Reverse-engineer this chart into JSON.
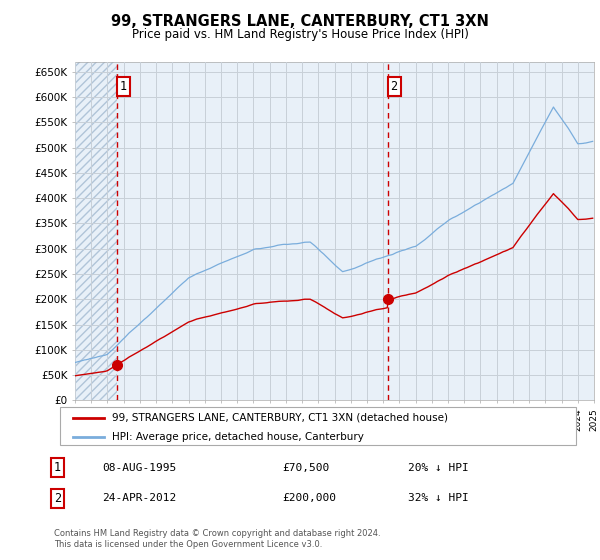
{
  "title": "99, STRANGERS LANE, CANTERBURY, CT1 3XN",
  "subtitle": "Price paid vs. HM Land Registry's House Price Index (HPI)",
  "sale1_price": 70500,
  "sale1_label": "08-AUG-1995",
  "sale1_pct": "20% ↓ HPI",
  "sale2_price": 200000,
  "sale2_label": "24-APR-2012",
  "sale2_pct": "32% ↓ HPI",
  "legend_property": "99, STRANGERS LANE, CANTERBURY, CT1 3XN (detached house)",
  "legend_hpi": "HPI: Average price, detached house, Canterbury",
  "footer": "Contains HM Land Registry data © Crown copyright and database right 2024.\nThis data is licensed under the Open Government Licence v3.0.",
  "property_line_color": "#cc0000",
  "hpi_line_color": "#7aaddc",
  "bg_color": "#e8f0f8",
  "hatch_color": "#c8d8e8",
  "grid_color": "#d0d8e0",
  "annotation_box_color": "#cc0000",
  "ylim_min": 0,
  "ylim_max": 670000,
  "xstart_year": 1993,
  "xend_year": 2025,
  "sale1_year_float": 1995.6,
  "sale2_year_float": 2012.3
}
